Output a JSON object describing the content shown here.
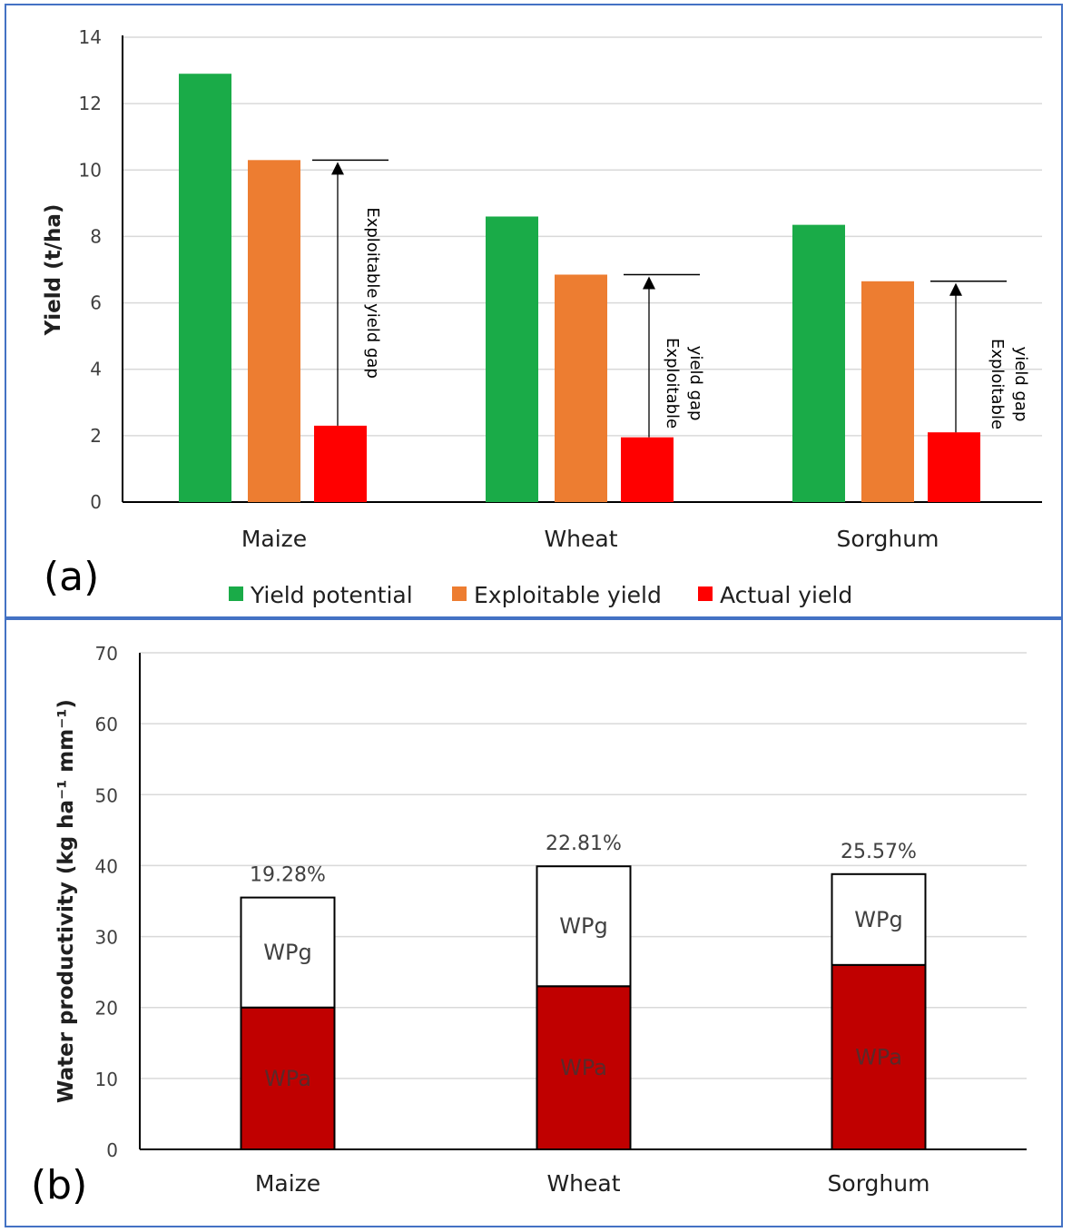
{
  "colors": {
    "yield_potential": "#1AAB48",
    "exploitable_yield": "#ED7D31",
    "actual_yield": "#FF0000",
    "wpa": "#C00000",
    "wpg": "#FFFFFF",
    "frame": "#4472C4",
    "grid": "#D9D9D9"
  },
  "chart_data": [
    {
      "panel": "(a)",
      "type": "bar",
      "ylabel": "Yield (t/ha)",
      "xlabel": "",
      "ylim": [
        0,
        14
      ],
      "yticks": [
        "0",
        "2",
        "4",
        "6",
        "8",
        "10",
        "12",
        "14"
      ],
      "grid": true,
      "categories": [
        "Maize",
        "Wheat",
        "Sorghum"
      ],
      "series": [
        {
          "name": "Yield potential",
          "color": "#1AAB48",
          "values": [
            12.9,
            8.6,
            8.35
          ]
        },
        {
          "name": "Exploitable yield",
          "color": "#ED7D31",
          "values": [
            10.3,
            6.85,
            6.65
          ]
        },
        {
          "name": "Actual yield",
          "color": "#FF0000",
          "values": [
            2.3,
            1.95,
            2.1
          ]
        }
      ],
      "annotations": [
        {
          "category": "Maize",
          "lines": [
            "Exploitable yield gap"
          ]
        },
        {
          "category": "Wheat",
          "lines": [
            "Exploitable",
            "yield gap"
          ]
        },
        {
          "category": "Sorghum",
          "lines": [
            "Exploitable",
            "yield gap"
          ]
        }
      ],
      "legend": "bottom"
    },
    {
      "panel": "(b)",
      "type": "bar",
      "stacked": true,
      "ylabel": "Water productivity (kg ha⁻¹ mm⁻¹)",
      "xlabel": "",
      "ylim": [
        0,
        70
      ],
      "yticks": [
        "0",
        "10",
        "20",
        "30",
        "40",
        "50",
        "60",
        "70"
      ],
      "grid": true,
      "categories": [
        "Maize",
        "Wheat",
        "Sorghum"
      ],
      "series": [
        {
          "name": "WPa",
          "color": "#C00000",
          "values": [
            20.0,
            23.0,
            26.0
          ]
        },
        {
          "name": "WPg",
          "color": "#FFFFFF",
          "values": [
            15.5,
            16.9,
            12.8
          ]
        }
      ],
      "top_labels": [
        "19.28%",
        "22.81%",
        "25.57%"
      ]
    }
  ]
}
